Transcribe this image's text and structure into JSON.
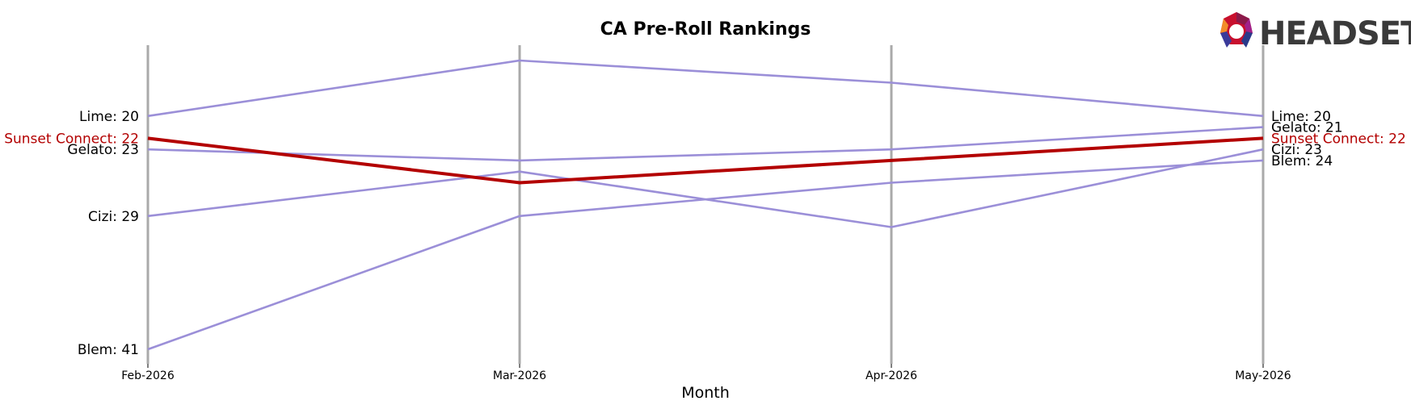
{
  "chart_data": {
    "type": "line",
    "title": "CA Pre-Roll Rankings",
    "xlabel": "Month",
    "ylabel": "",
    "y_inverted": true,
    "categories": [
      "Feb-2026",
      "Mar-2026",
      "Apr-2026",
      "May-2026"
    ],
    "highlight_color": "#b30000",
    "series_color": "#9b8fd8",
    "series": [
      {
        "name": "Lime",
        "values": [
          20,
          15,
          17,
          20
        ],
        "highlight": false
      },
      {
        "name": "Gelato",
        "values": [
          23,
          24,
          23,
          21
        ],
        "highlight": false
      },
      {
        "name": "Cizi",
        "values": [
          29,
          25,
          30,
          23
        ],
        "highlight": false
      },
      {
        "name": "Blem",
        "values": [
          41,
          29,
          26,
          24
        ],
        "highlight": false
      },
      {
        "name": "Sunset Connect",
        "values": [
          22,
          26,
          24,
          22
        ],
        "highlight": true
      }
    ],
    "left_labels": [
      "Lime: 20",
      "Sunset Connect: 22",
      "Gelato: 23",
      "Cizi: 29",
      "Blem: 41"
    ],
    "right_labels": [
      "Lime: 20",
      "Gelato: 21",
      "Sunset Connect: 22",
      "Cizi: 23",
      "Blem: 24"
    ],
    "legend": "none",
    "grid": false
  },
  "logo": {
    "text": "HEADSET"
  }
}
